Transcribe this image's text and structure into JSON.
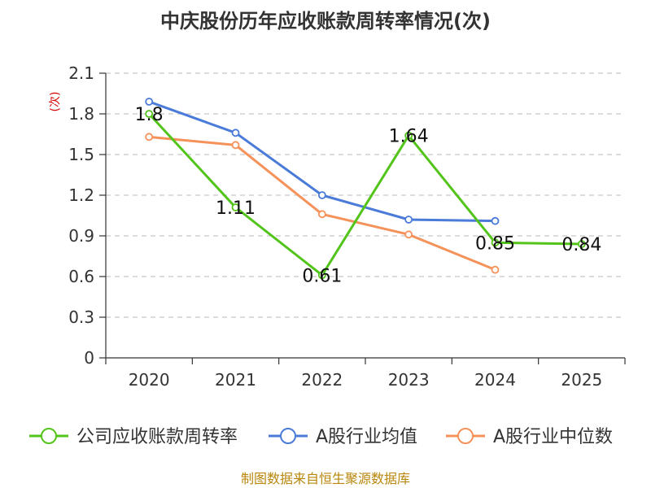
{
  "chart_data": {
    "type": "line",
    "title": "中庆股份历年应收账款周转率情况(次)",
    "ylabel": "(次)",
    "xlabel": "",
    "categories": [
      "2020",
      "2021",
      "2022",
      "2023",
      "2024",
      "2025"
    ],
    "ylim": [
      0,
      2.1
    ],
    "yticks": [
      "0",
      "0.3",
      "0.6",
      "0.9",
      "1.2",
      "1.5",
      "1.8",
      "2.1"
    ],
    "grid": true,
    "legend_position": "bottom",
    "series": [
      {
        "name": "公司应收账款周转率",
        "color": "#52c41a",
        "values": [
          1.8,
          1.11,
          0.61,
          1.64,
          0.85,
          0.84
        ],
        "labels": [
          "1.8",
          "1.11",
          "0.61",
          "1.64",
          "0.85",
          "0.84"
        ]
      },
      {
        "name": "A股行业均值",
        "color": "#4a7bd9",
        "values": [
          1.89,
          1.66,
          1.2,
          1.02,
          1.01,
          null
        ]
      },
      {
        "name": "A股行业中位数",
        "color": "#f5925a",
        "values": [
          1.63,
          1.57,
          1.06,
          0.91,
          0.65,
          null
        ]
      }
    ],
    "source": "制图数据来自恒生聚源数据库"
  }
}
